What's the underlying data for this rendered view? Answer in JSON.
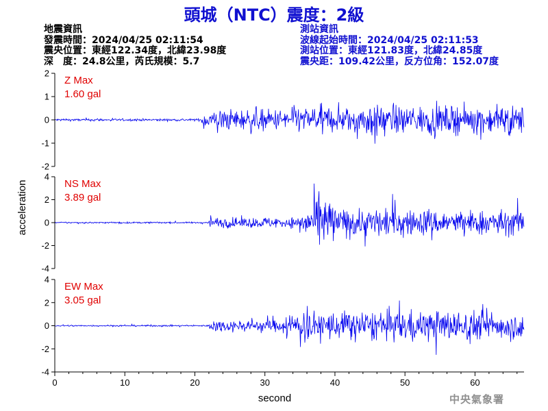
{
  "title": "頭城（NTC）震度：2級",
  "quake_info": {
    "heading": "地震資訊",
    "origin_time": "發震時間：2024/04/25 02:11:54",
    "epicenter": "震央位置：東經122.34度，北緯23.98度",
    "depth_magnitude": "深　度：24.8公里，芮氏規模：5.7"
  },
  "station_info": {
    "heading": "測站資訊",
    "wave_start": "波線起始時間：2024/04/25 02:11:53",
    "location": "測站位置：東經121.83度，北緯24.85度",
    "distance": "震央距：109.42公里，反方位角：152.07度"
  },
  "footer": "中央氣象署",
  "chart_data": [
    {
      "type": "line",
      "component": "Z",
      "max_label": "Z Max",
      "max_value": "1.60 gal",
      "ylim": [
        -2,
        2
      ],
      "yticks": [
        -2,
        -1,
        0,
        1,
        2
      ],
      "ytick_labels": [
        "-2",
        "-1",
        "0",
        "1",
        "2"
      ],
      "color": "#0000ee",
      "segments": [
        {
          "t0": 0,
          "t1": 21,
          "amp": 0.06
        },
        {
          "t0": 21,
          "t1": 23,
          "amp": 0.45
        },
        {
          "t0": 23,
          "t1": 34,
          "amp": 0.55
        },
        {
          "t0": 34,
          "t1": 44,
          "amp": 0.65
        },
        {
          "t0": 44,
          "t1": 46,
          "amp": 0.95
        },
        {
          "t0": 46,
          "t1": 67,
          "amp": 0.7
        }
      ]
    },
    {
      "type": "line",
      "component": "NS",
      "max_label": "NS Max",
      "max_value": "3.89 gal",
      "ylim": [
        -4,
        4
      ],
      "yticks": [
        -4,
        -2,
        0,
        2,
        4
      ],
      "ytick_labels": [
        "-4",
        "-2",
        "0",
        "2",
        "4"
      ],
      "color": "#0000ee",
      "segments": [
        {
          "t0": 0,
          "t1": 22,
          "amp": 0.08
        },
        {
          "t0": 22,
          "t1": 35,
          "amp": 0.55
        },
        {
          "t0": 35,
          "t1": 37,
          "amp": 1.4
        },
        {
          "t0": 37,
          "t1": 40,
          "amp": 2.8
        },
        {
          "t0": 40,
          "t1": 50,
          "amp": 1.5
        },
        {
          "t0": 50,
          "t1": 67,
          "amp": 1.3
        }
      ]
    },
    {
      "type": "line",
      "component": "EW",
      "max_label": "EW Max",
      "max_value": "3.05 gal",
      "ylim": [
        -4,
        4
      ],
      "yticks": [
        -4,
        -2,
        0,
        2,
        4
      ],
      "ytick_labels": [
        "-4",
        "-2",
        "0",
        "2",
        "4"
      ],
      "color": "#0000ee",
      "segments": [
        {
          "t0": 0,
          "t1": 22,
          "amp": 0.08
        },
        {
          "t0": 22,
          "t1": 33,
          "amp": 0.6
        },
        {
          "t0": 33,
          "t1": 40,
          "amp": 1.5
        },
        {
          "t0": 40,
          "t1": 60,
          "amp": 1.6
        },
        {
          "t0": 60,
          "t1": 67,
          "amp": 1.4
        }
      ]
    }
  ],
  "x_axis": {
    "xlabel": "second",
    "xlim": [
      0,
      67
    ],
    "xticks": [
      0,
      10,
      20,
      30,
      40,
      50,
      60
    ],
    "xtick_labels": [
      "0",
      "10",
      "20",
      "30",
      "40",
      "50",
      "60"
    ]
  },
  "ylabel": "acceleration"
}
